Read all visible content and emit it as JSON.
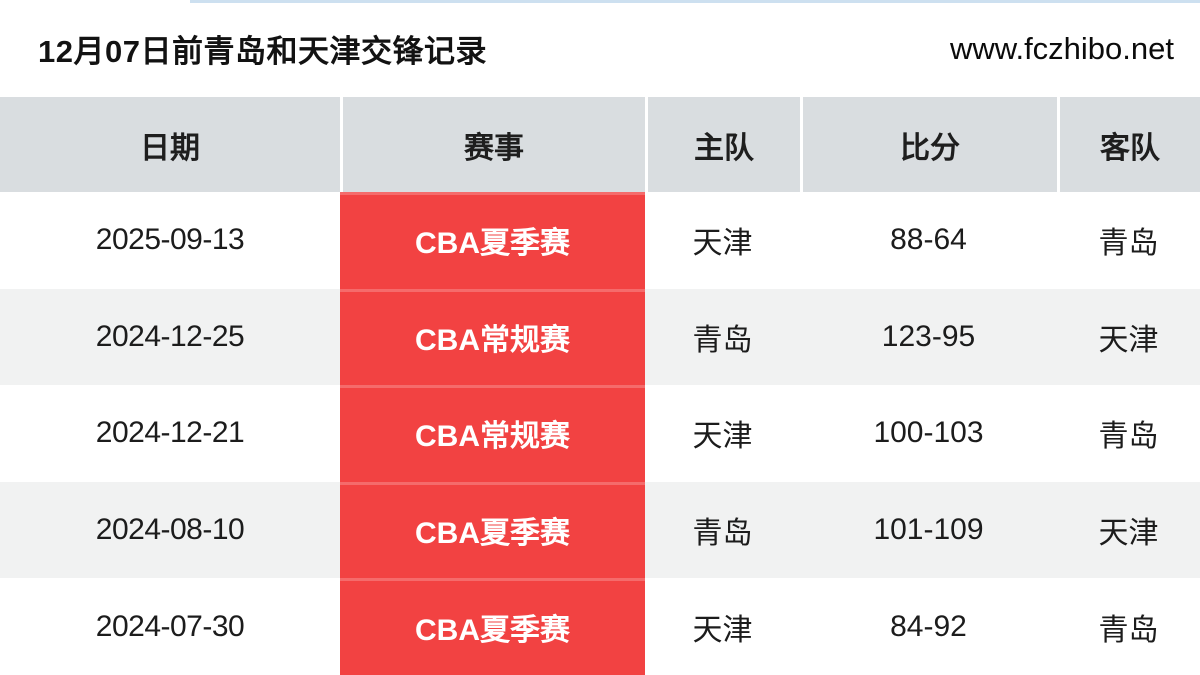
{
  "page": {
    "title": "12月07日前青岛和天津交锋记录",
    "site_url": "www.fczhibo.net"
  },
  "colors": {
    "accent_red": "#f24242",
    "header_gray": "#d9dde0",
    "row_alt_gray": "#f1f2f2",
    "top_strip_blue": "#cde0f0"
  },
  "table": {
    "columns": [
      "日期",
      "赛事",
      "主队",
      "比分",
      "客队"
    ],
    "rows": [
      {
        "date": "2025-09-13",
        "event": "CBA夏季赛",
        "home": "天津",
        "score": "88-64",
        "away": "青岛"
      },
      {
        "date": "2024-12-25",
        "event": "CBA常规赛",
        "home": "青岛",
        "score": "123-95",
        "away": "天津"
      },
      {
        "date": "2024-12-21",
        "event": "CBA常规赛",
        "home": "天津",
        "score": "100-103",
        "away": "青岛"
      },
      {
        "date": "2024-08-10",
        "event": "CBA夏季赛",
        "home": "青岛",
        "score": "101-109",
        "away": "天津"
      },
      {
        "date": "2024-07-30",
        "event": "CBA夏季赛",
        "home": "天津",
        "score": "84-92",
        "away": "青岛"
      }
    ]
  }
}
